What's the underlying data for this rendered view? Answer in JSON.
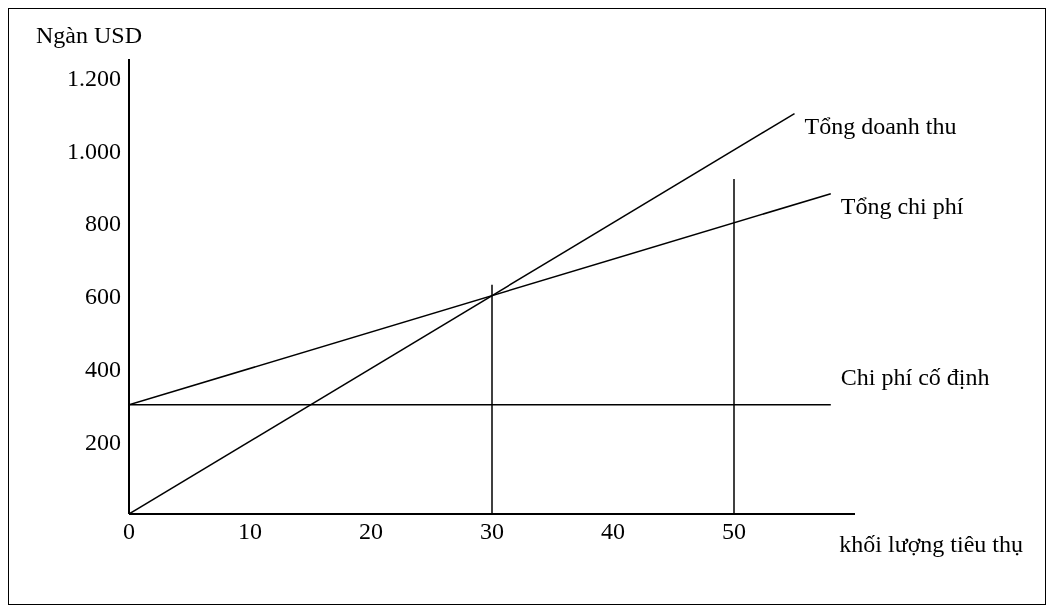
{
  "chart_data": {
    "type": "line",
    "xlabel": "khối lượng tiêu thụ",
    "ylabel": "Ngàn USD",
    "xlim": [
      0,
      60
    ],
    "xticks": [
      0,
      10,
      20,
      30,
      40,
      50
    ],
    "ylim": [
      0,
      1250
    ],
    "yticks": [
      200,
      400,
      600,
      800,
      {
        "value": 1000,
        "label": "1.000"
      },
      {
        "value": 1200,
        "label": "1.200"
      }
    ],
    "grid": false,
    "legend": false,
    "marker": "none",
    "line_style": "solid",
    "series": [
      {
        "name": "Tổng doanh thu",
        "color": "#000000",
        "x": [
          0,
          55
        ],
        "values": [
          0,
          1100
        ]
      },
      {
        "name": "Tổng chi phí",
        "color": "#000000",
        "x": [
          0,
          58
        ],
        "values": [
          300,
          880
        ]
      },
      {
        "name": "Chi phí cố định",
        "color": "#000000",
        "x": [
          0,
          58
        ],
        "values": [
          300,
          300
        ]
      },
      {
        "color": "#000000",
        "x": [
          30,
          30
        ],
        "values": [
          0,
          630
        ]
      },
      {
        "color": "#000000",
        "x": [
          50,
          50
        ],
        "values": [
          0,
          920
        ]
      }
    ]
  }
}
